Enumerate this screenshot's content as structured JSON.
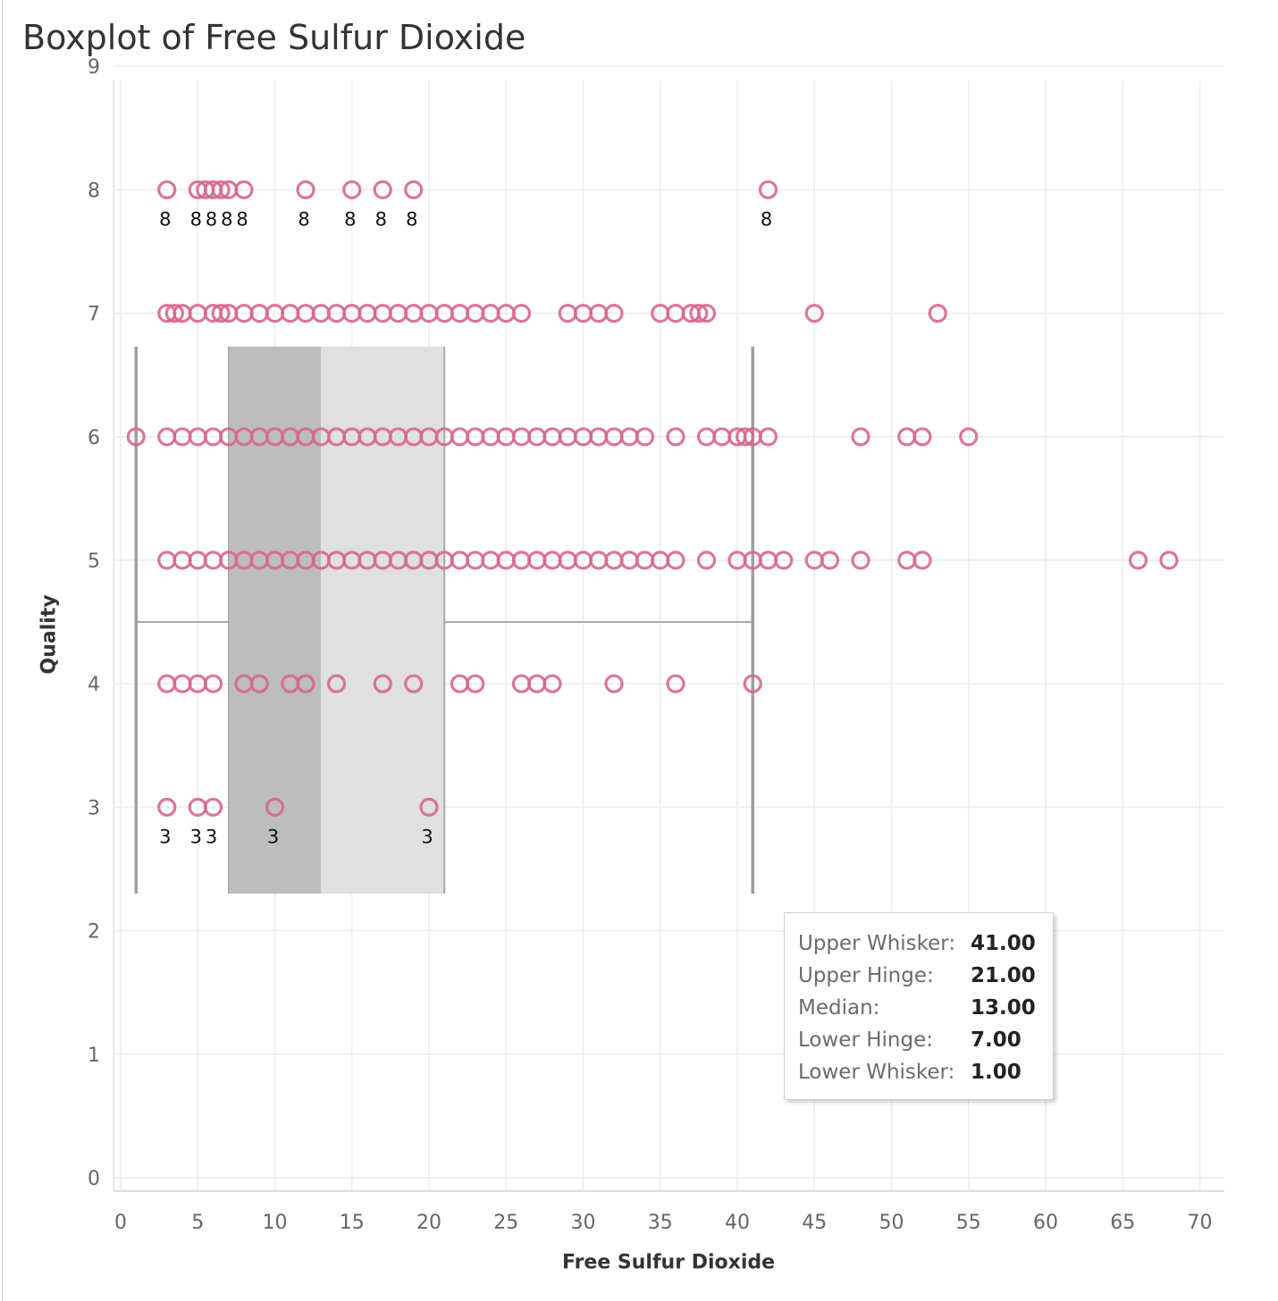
{
  "title": "Boxplot of Free Sulfur Dioxide",
  "tooltip": {
    "rows": [
      {
        "label": "Upper Whisker:",
        "value": "41.00"
      },
      {
        "label": "Upper Hinge:",
        "value": "21.00"
      },
      {
        "label": "Median:",
        "value": "13.00"
      },
      {
        "label": "Lower Hinge:",
        "value": "7.00"
      },
      {
        "label": "Lower Whisker:",
        "value": "1.00"
      }
    ]
  },
  "colors": {
    "points": "#d6678e",
    "box_lower": "#bdbdbd",
    "box_upper": "#e0e0e0",
    "whisker": "#9e9e9e",
    "grid": "#ececec",
    "tick_label": "#666666"
  },
  "chart_data": {
    "type": "scatter",
    "title": "Boxplot of Free Sulfur Dioxide",
    "xlabel": "Free Sulfur Dioxide",
    "ylabel": "Quality",
    "xlim": [
      -0.5,
      71.5
    ],
    "ylim": [
      -0.1,
      9.2
    ],
    "x_ticks": [
      0,
      5,
      10,
      15,
      20,
      25,
      30,
      35,
      40,
      45,
      50,
      55,
      60,
      65,
      70
    ],
    "y_ticks": [
      0,
      1,
      2,
      3,
      4,
      5,
      6,
      7,
      8,
      9
    ],
    "grid": true,
    "marker": "open-circle",
    "box": {
      "x_lower_whisker": 1,
      "x_lower_hinge": 7,
      "x_median": 13,
      "x_upper_hinge": 21,
      "x_upper_whisker": 41,
      "y_range": [
        2.3,
        6.73
      ],
      "y_whisker_line": 4.5
    },
    "groups": [
      {
        "quality": 8,
        "free_sulfur_dioxide": [
          3,
          5,
          5.5,
          6,
          6.5,
          7,
          8,
          12,
          15,
          17,
          19,
          42
        ],
        "value_labels": [
          3,
          5,
          6,
          7,
          8,
          12,
          15,
          17,
          19,
          42
        ]
      },
      {
        "quality": 7,
        "free_sulfur_dioxide": [
          3,
          3.5,
          4,
          5,
          6,
          6.5,
          7,
          8,
          9,
          10,
          11,
          12,
          13,
          14,
          15,
          16,
          17,
          18,
          19,
          20,
          21,
          22,
          23,
          24,
          25,
          26,
          29,
          30,
          31,
          32,
          35,
          36,
          37,
          37.5,
          38,
          45,
          53
        ]
      },
      {
        "quality": 6,
        "free_sulfur_dioxide": [
          1,
          3,
          4,
          5,
          6,
          7,
          8,
          9,
          10,
          11,
          12,
          13,
          14,
          15,
          16,
          17,
          18,
          19,
          20,
          21,
          22,
          23,
          24,
          25,
          26,
          27,
          28,
          29,
          30,
          31,
          32,
          33,
          34,
          36,
          38,
          39,
          40,
          40.5,
          41,
          42,
          48,
          51,
          52,
          55
        ]
      },
      {
        "quality": 5,
        "free_sulfur_dioxide": [
          3,
          4,
          5,
          6,
          7,
          8,
          9,
          10,
          11,
          12,
          13,
          14,
          15,
          16,
          17,
          18,
          19,
          20,
          21,
          22,
          23,
          24,
          25,
          26,
          27,
          28,
          29,
          30,
          31,
          32,
          33,
          34,
          35,
          36,
          38,
          40,
          41,
          42,
          43,
          45,
          46,
          48,
          51,
          52,
          66,
          68
        ]
      },
      {
        "quality": 4,
        "free_sulfur_dioxide": [
          3,
          4,
          5,
          6,
          8,
          9,
          11,
          12,
          14,
          17,
          19,
          22,
          23,
          26,
          27,
          28,
          32,
          36,
          41
        ]
      },
      {
        "quality": 3,
        "free_sulfur_dioxide": [
          3,
          5,
          6,
          10,
          20
        ],
        "value_labels": [
          3,
          5,
          6,
          10,
          20
        ]
      }
    ]
  }
}
